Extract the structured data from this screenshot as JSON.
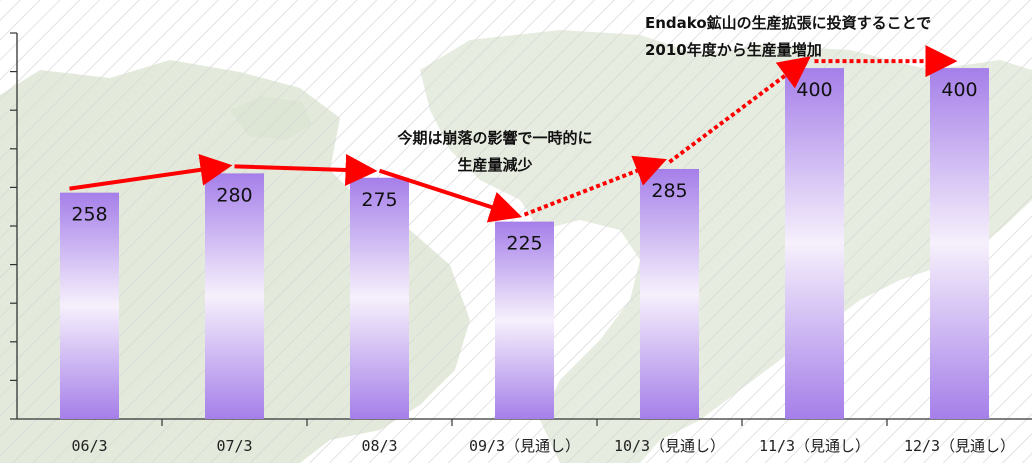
{
  "chart_data": {
    "type": "bar",
    "categories": [
      "06/3",
      "07/3",
      "08/3",
      "09/3（見通し）",
      "10/3（見通し）",
      "11/3（見通し）",
      "12/3（見通し）"
    ],
    "values": [
      258,
      280,
      275,
      225,
      285,
      400,
      400
    ],
    "data_labels": [
      "258",
      "280",
      "275",
      "225",
      "285",
      "400",
      "400"
    ],
    "ylim": [
      0,
      440
    ],
    "yticks": [
      0,
      44,
      88,
      132,
      176,
      220,
      264,
      308,
      352,
      396,
      440
    ],
    "grid": false,
    "title": "",
    "xlabel": "",
    "ylabel": "",
    "colors": {
      "bar_light": "#f6f0fc",
      "bar_dark": "#a57fe9",
      "trend_line": "#ff0000",
      "axis": "#333333",
      "map_land": "#e3eadb",
      "hatch": "#d8d8d8"
    },
    "annotations": [
      {
        "lines": [
          "今期は崩落の影響で一時的に",
          "生産量減少"
        ]
      },
      {
        "lines": [
          "Endako鉱山の生産拡張に投資することで",
          "2010年度から生産量増加"
        ]
      }
    ]
  }
}
